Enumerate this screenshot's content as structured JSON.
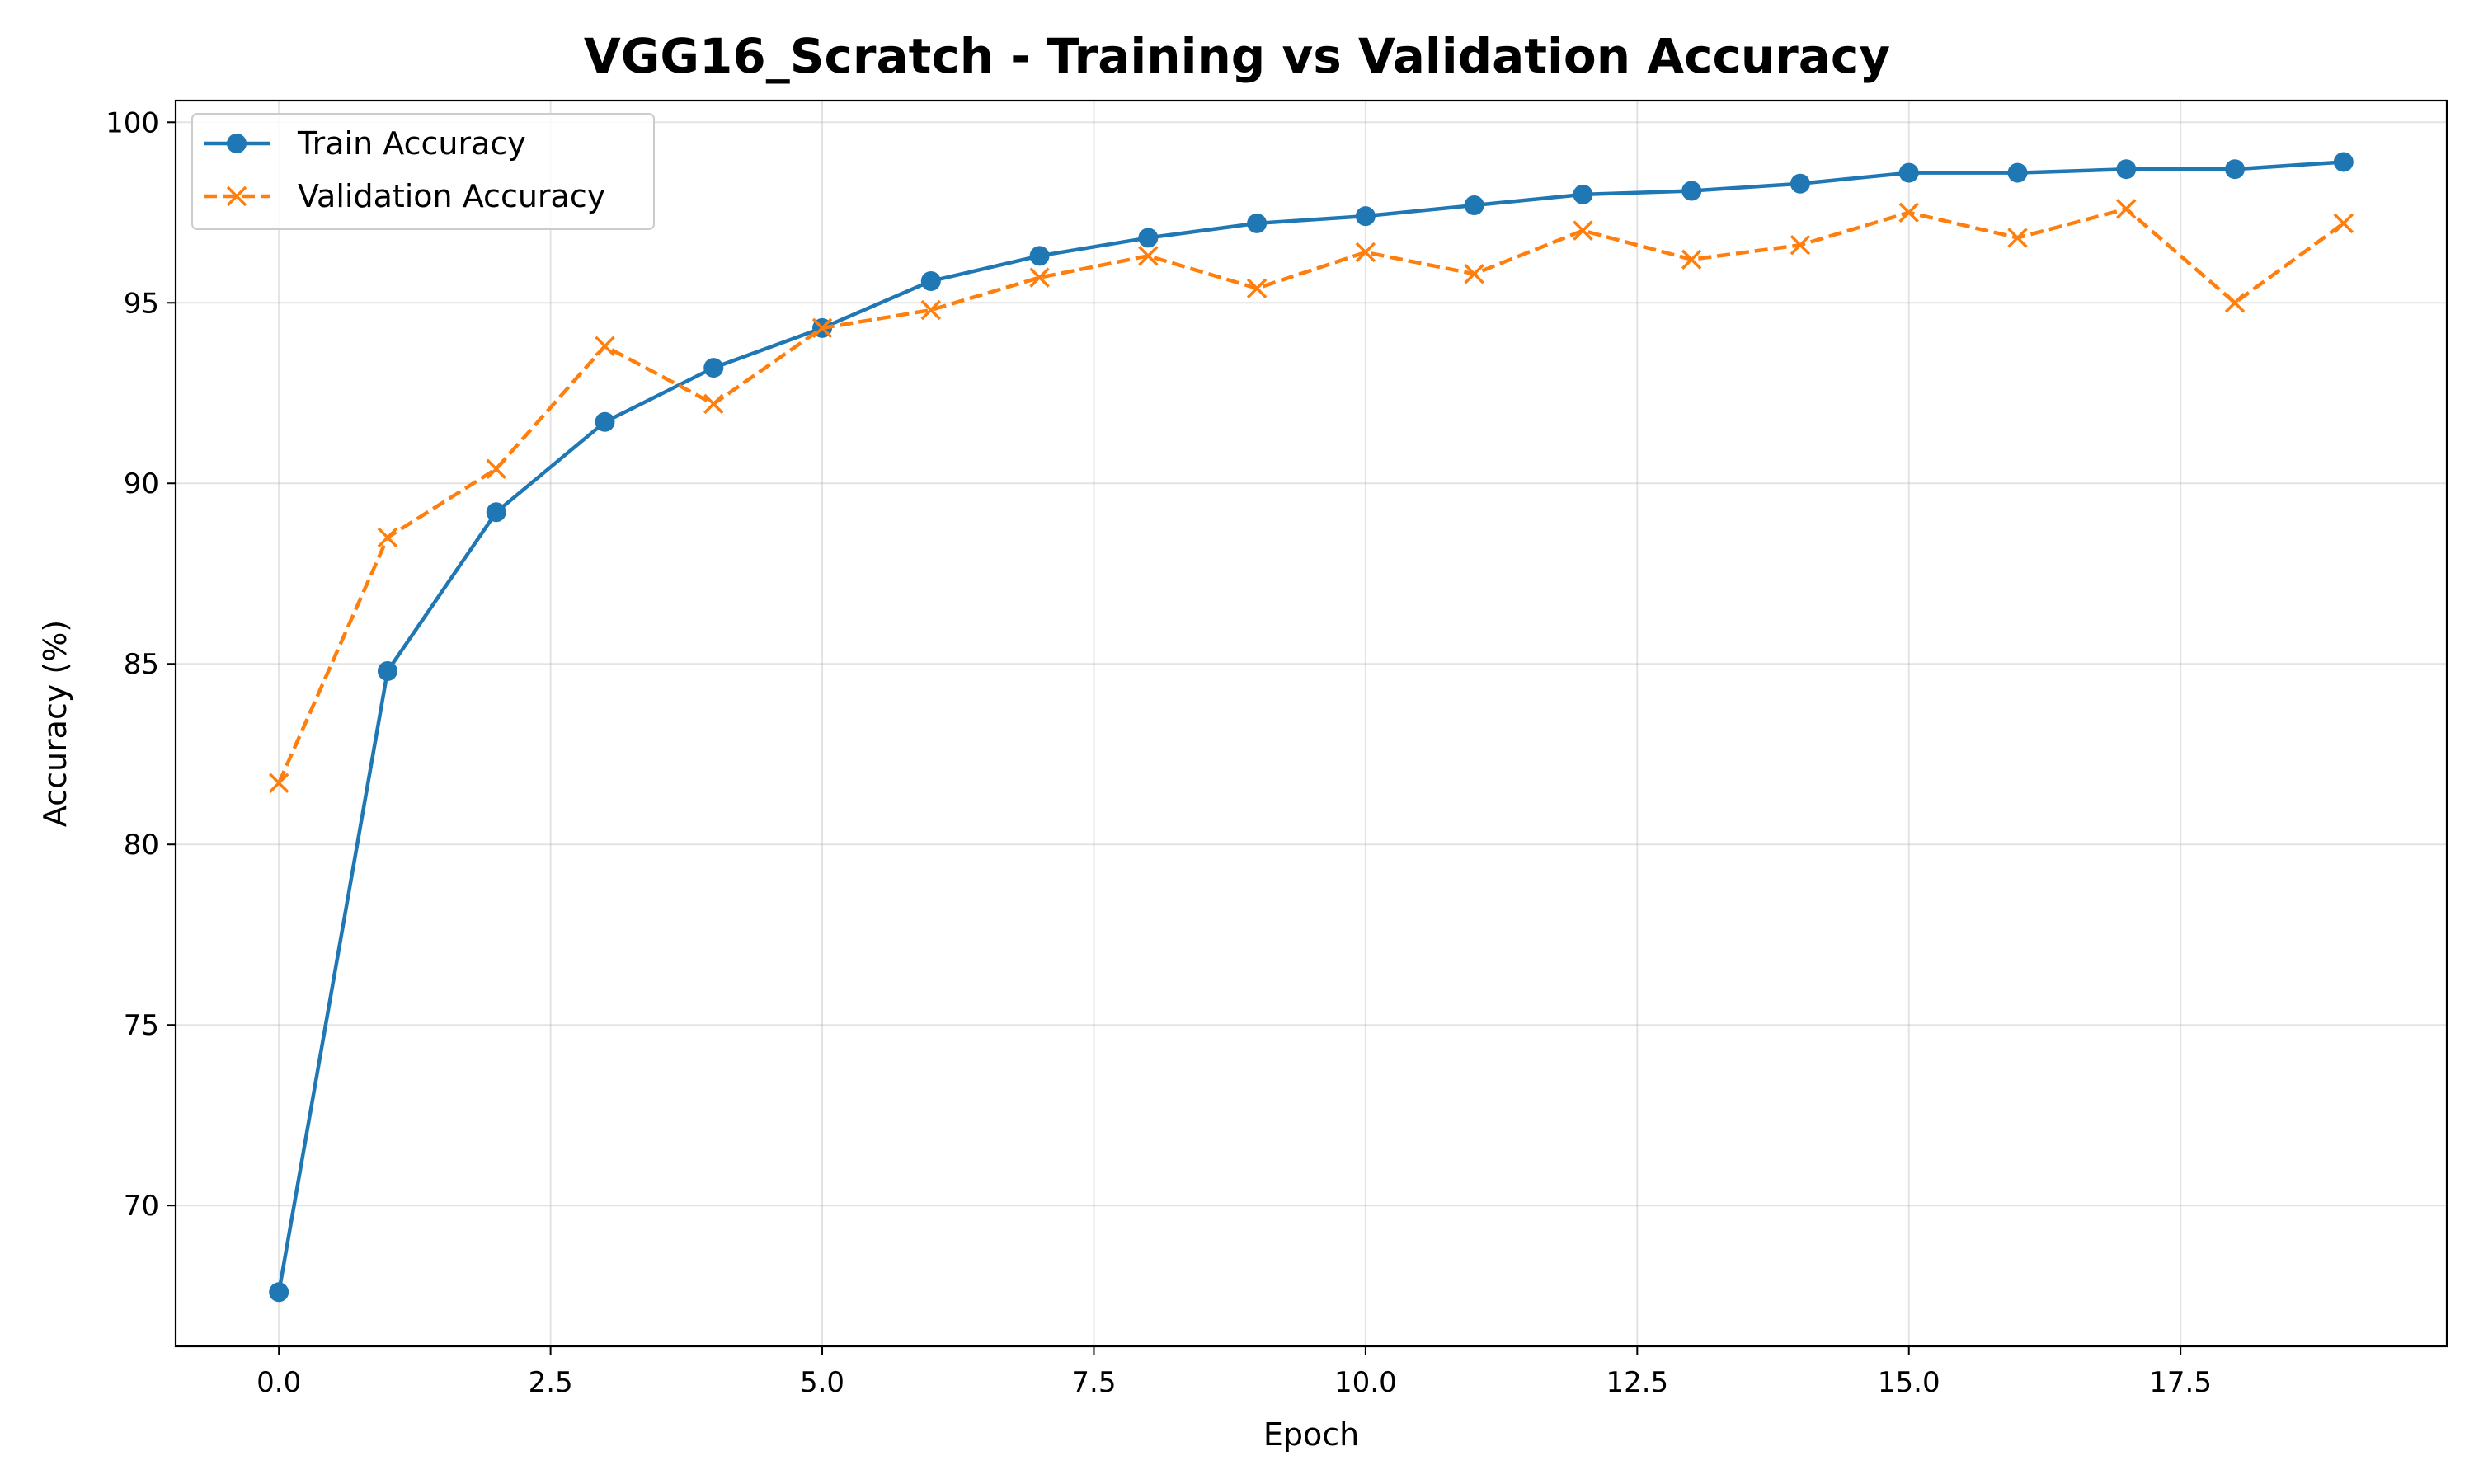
{
  "chart_data": {
    "type": "line",
    "title": "VGG16_Scratch - Training vs Validation Accuracy",
    "xlabel": "Epoch",
    "ylabel": "Accuracy (%)",
    "xlim": [
      -0.95,
      19.95
    ],
    "ylim": [
      66.1,
      100.6
    ],
    "grid": true,
    "legend_position": "top-left",
    "x_ticks": [
      0.0,
      2.5,
      5.0,
      7.5,
      10.0,
      12.5,
      15.0,
      17.5
    ],
    "x_tick_labels": [
      "0.0",
      "2.5",
      "5.0",
      "7.5",
      "10.0",
      "12.5",
      "15.0",
      "17.5"
    ],
    "y_ticks": [
      70,
      75,
      80,
      85,
      90,
      95,
      100
    ],
    "y_tick_labels": [
      "70",
      "75",
      "80",
      "85",
      "90",
      "95",
      "100"
    ],
    "x": [
      0,
      1,
      2,
      3,
      4,
      5,
      6,
      7,
      8,
      9,
      10,
      11,
      12,
      13,
      14,
      15,
      16,
      17,
      18,
      19
    ],
    "series": [
      {
        "name": "Train Accuracy",
        "color": "#1f77b4",
        "line_style": "solid",
        "marker": "circle",
        "values": [
          67.6,
          84.8,
          89.2,
          91.7,
          93.2,
          94.3,
          95.6,
          96.3,
          96.8,
          97.2,
          97.4,
          97.7,
          98.0,
          98.1,
          98.3,
          98.6,
          98.6,
          98.7,
          98.7,
          98.9
        ]
      },
      {
        "name": "Validation Accuracy",
        "color": "#ff7f0e",
        "line_style": "dashed",
        "marker": "x",
        "values": [
          81.7,
          88.5,
          90.4,
          93.8,
          92.2,
          94.3,
          94.8,
          95.7,
          96.3,
          95.4,
          96.4,
          95.8,
          97.0,
          96.2,
          96.6,
          97.5,
          96.8,
          97.6,
          95.0,
          97.2
        ]
      }
    ]
  }
}
